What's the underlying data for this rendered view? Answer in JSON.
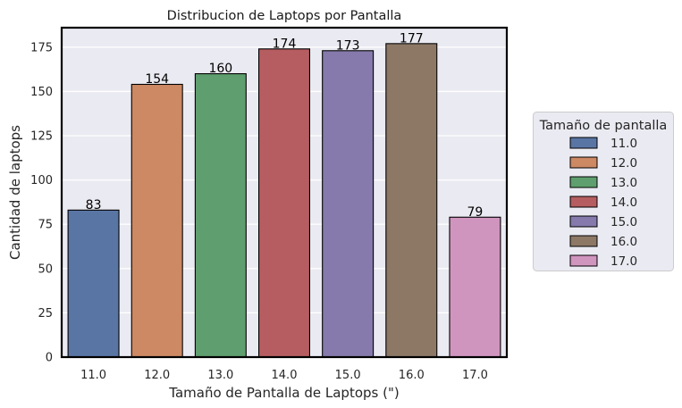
{
  "chart_data": {
    "type": "bar",
    "title": "Distribucion de Laptops por Pantalla",
    "xlabel": "Tamaño de Pantalla de Laptops (\")",
    "ylabel": "Cantidad de laptops",
    "categories": [
      "11.0",
      "12.0",
      "13.0",
      "14.0",
      "15.0",
      "16.0",
      "17.0"
    ],
    "values": [
      83,
      154,
      160,
      174,
      173,
      177,
      79
    ],
    "data_labels": [
      "83",
      "154",
      "160",
      "174",
      "173",
      "177",
      "79"
    ],
    "colors": [
      "#5975a4",
      "#cc8963",
      "#5f9e6e",
      "#b55d60",
      "#857aab",
      "#8d7866",
      "#d095bf"
    ],
    "ylim": [
      0,
      186
    ],
    "yticks": [
      0,
      25,
      50,
      75,
      100,
      125,
      150,
      175
    ],
    "ytick_labels": [
      "0",
      "25",
      "50",
      "75",
      "100",
      "125",
      "150",
      "175"
    ],
    "grid": true,
    "background": "#eaeaf2",
    "legend": {
      "title": "Tamaño de pantalla",
      "placement": "right-outside",
      "entries": [
        "11.0",
        "12.0",
        "13.0",
        "14.0",
        "15.0",
        "16.0",
        "17.0"
      ]
    }
  }
}
